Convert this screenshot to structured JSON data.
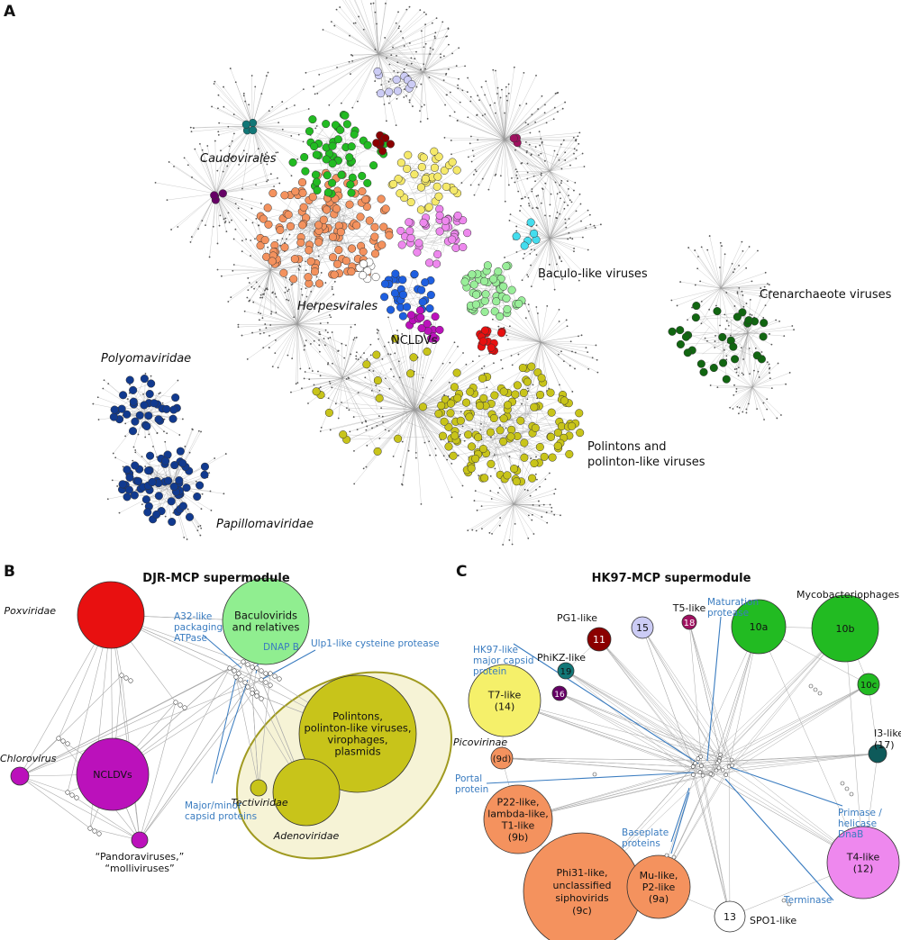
{
  "panel_a": {
    "letter": "A",
    "caudovirales": "Caudovirales",
    "baculo": "Baculo-like viruses",
    "crenarchaeote": "Crenarchaeote viruses",
    "herpesvirales": "Herpesvirales",
    "ncldvs": "NCLDVs",
    "polyomaviridae": "Polyomaviridae",
    "polintons": [
      "Polintons and",
      "polinton-like viruses"
    ],
    "papillomaviridae": "Papillomaviridae"
  },
  "panel_b": {
    "letter": "B",
    "title": "DJR-MCP supermodule",
    "poxviridae": "Poxviridae",
    "baculovirids": [
      "Baculovirids",
      "and relatives"
    ],
    "a32": [
      "A32-like",
      "packaging",
      "ATPase"
    ],
    "ulp1": "Ulp1-like cysteine protease",
    "dnap": "DNAP B",
    "chlorovirus": "Chlorovirus",
    "ncldvs": "NCLDVs",
    "polintons": [
      "Polintons,",
      "polinton-like viruses,",
      "virophages,",
      "plasmids"
    ],
    "tectiviridae": "Tectiviridae",
    "adenoviridae": "Adenoviridae",
    "capsid": [
      "Major/minor",
      "capsid proteins"
    ],
    "pandora": [
      "“Pandoraviruses,”",
      "“molliviruses”"
    ]
  },
  "panel_c": {
    "letter": "C",
    "title": "HK97-MCP supermodule",
    "maturation": [
      "Maturation",
      "protease"
    ],
    "t5": "T5-like",
    "n18": "18",
    "pg1": "PG1-like",
    "n11": "11",
    "n15": "15",
    "n10a": "10a",
    "n10b": "10b",
    "myco": "Mycobacteriophages",
    "hk97": [
      "HK97-like",
      "major capsid",
      "protein"
    ],
    "phikz": "PhiKZ-like",
    "n19": "19",
    "n16": "16",
    "n10c": "10c",
    "t7": [
      "T7-like",
      "(14)"
    ],
    "picovirinae": "Picovirinae",
    "n9d": "(9d)",
    "i3": [
      "I3-like",
      "(17)"
    ],
    "portal": [
      "Portal",
      "protein"
    ],
    "p22": [
      "P22-like,",
      "lambda-like,",
      "T1-like",
      "(9b)"
    ],
    "primase": [
      "Primase /",
      "helicase",
      "DnaB"
    ],
    "baseplate": [
      "Baseplate",
      "proteins"
    ],
    "phi31": [
      "Phi31-like,",
      "unclassified",
      "siphovirids",
      "(9c)"
    ],
    "mu": [
      "Mu-like,",
      "P2-like",
      "(9a)"
    ],
    "n13": "13",
    "spo1": "SPO1-like",
    "t4": [
      "T4-like",
      "(12)"
    ],
    "terminase": "Terminase"
  }
}
